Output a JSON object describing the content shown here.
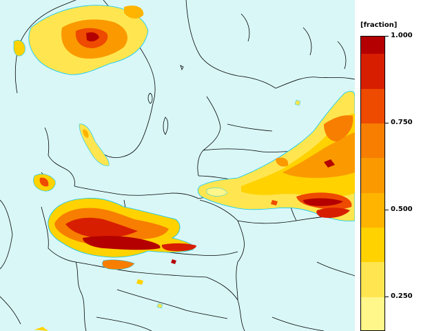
{
  "legend": {
    "unit_label": "[fraction]",
    "ticks": [
      "1.000",
      "0.750",
      "0.500",
      "0.250"
    ],
    "tick_values": [
      1.0,
      0.75,
      0.5,
      0.25
    ],
    "color_bands": [
      {
        "from": 0.95,
        "to": 1.0,
        "color": "#b40000"
      },
      {
        "from": 0.85,
        "to": 0.95,
        "color": "#d81e00"
      },
      {
        "from": 0.75,
        "to": 0.85,
        "color": "#ee4a00"
      },
      {
        "from": 0.65,
        "to": 0.75,
        "color": "#f77e00"
      },
      {
        "from": 0.55,
        "to": 0.65,
        "color": "#fa9a00"
      },
      {
        "from": 0.45,
        "to": 0.55,
        "color": "#ffb400"
      },
      {
        "from": 0.35,
        "to": 0.45,
        "color": "#ffd200"
      },
      {
        "from": 0.25,
        "to": 0.35,
        "color": "#ffe650"
      },
      {
        "from": 0.15,
        "to": 0.25,
        "color": "#fff78a"
      }
    ]
  },
  "map": {
    "sea_color": "#d9f7f7",
    "border_color": "#000000",
    "outline_color": "#00c8ff"
  }
}
